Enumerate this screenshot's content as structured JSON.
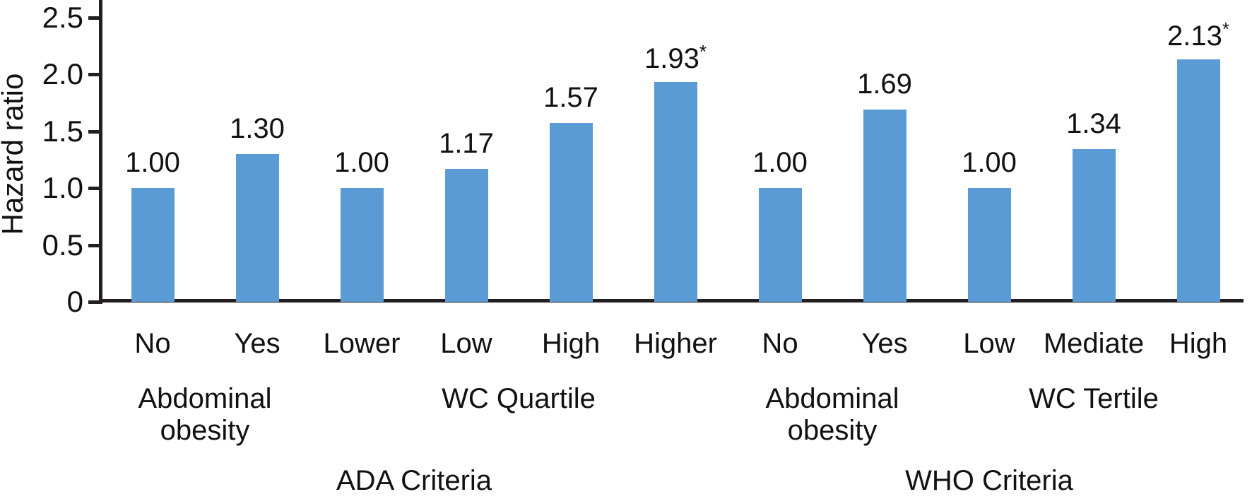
{
  "chart_data": {
    "type": "bar",
    "title": "",
    "xlabel": "",
    "ylabel": "Hazard ratio",
    "ylim": [
      0,
      2.5
    ],
    "grid": false,
    "legend": "none",
    "bar_color": "#5B9BD5",
    "axis_color": "#231F20",
    "y_ticks": [
      {
        "value": 0,
        "label": "0"
      },
      {
        "value": 0.5,
        "label": "0.5"
      },
      {
        "value": 1,
        "label": "1.0"
      },
      {
        "value": 1.5,
        "label": "1.5"
      },
      {
        "value": 2,
        "label": "2.0"
      },
      {
        "value": 2.5,
        "label": "2.5"
      }
    ],
    "bars": [
      {
        "category": "No",
        "value": 1.0,
        "label": "1.00",
        "star": false
      },
      {
        "category": "Yes",
        "value": 1.3,
        "label": "1.30",
        "star": false
      },
      {
        "category": "Lower",
        "value": 1.0,
        "label": "1.00",
        "star": false
      },
      {
        "category": "Low",
        "value": 1.17,
        "label": "1.17",
        "star": false
      },
      {
        "category": "High",
        "value": 1.57,
        "label": "1.57",
        "star": false
      },
      {
        "category": "Higher",
        "value": 1.93,
        "label": "1.93",
        "star": true
      },
      {
        "category": "No",
        "value": 1.0,
        "label": "1.00",
        "star": false
      },
      {
        "category": "Yes",
        "value": 1.69,
        "label": "1.69",
        "star": false
      },
      {
        "category": "Low",
        "value": 1.0,
        "label": "1.00",
        "star": false
      },
      {
        "category": "Mediate",
        "value": 1.34,
        "label": "1.34",
        "star": false
      },
      {
        "category": "High",
        "value": 2.13,
        "label": "2.13",
        "star": true
      }
    ],
    "groups": [
      {
        "lines": [
          "Abdominal",
          "obesity"
        ],
        "from": 0,
        "to": 1
      },
      {
        "lines": [
          "WC Quartile"
        ],
        "from": 2,
        "to": 5
      },
      {
        "lines": [
          "Abdominal",
          "obesity"
        ],
        "from": 6,
        "to": 7
      },
      {
        "lines": [
          "WC Tertile"
        ],
        "from": 8,
        "to": 10
      }
    ],
    "criteria": [
      {
        "label": "ADA Criteria",
        "from": 0,
        "to": 5
      },
      {
        "label": "WHO Criteria",
        "from": 6,
        "to": 10
      }
    ],
    "star_symbol": "*"
  }
}
